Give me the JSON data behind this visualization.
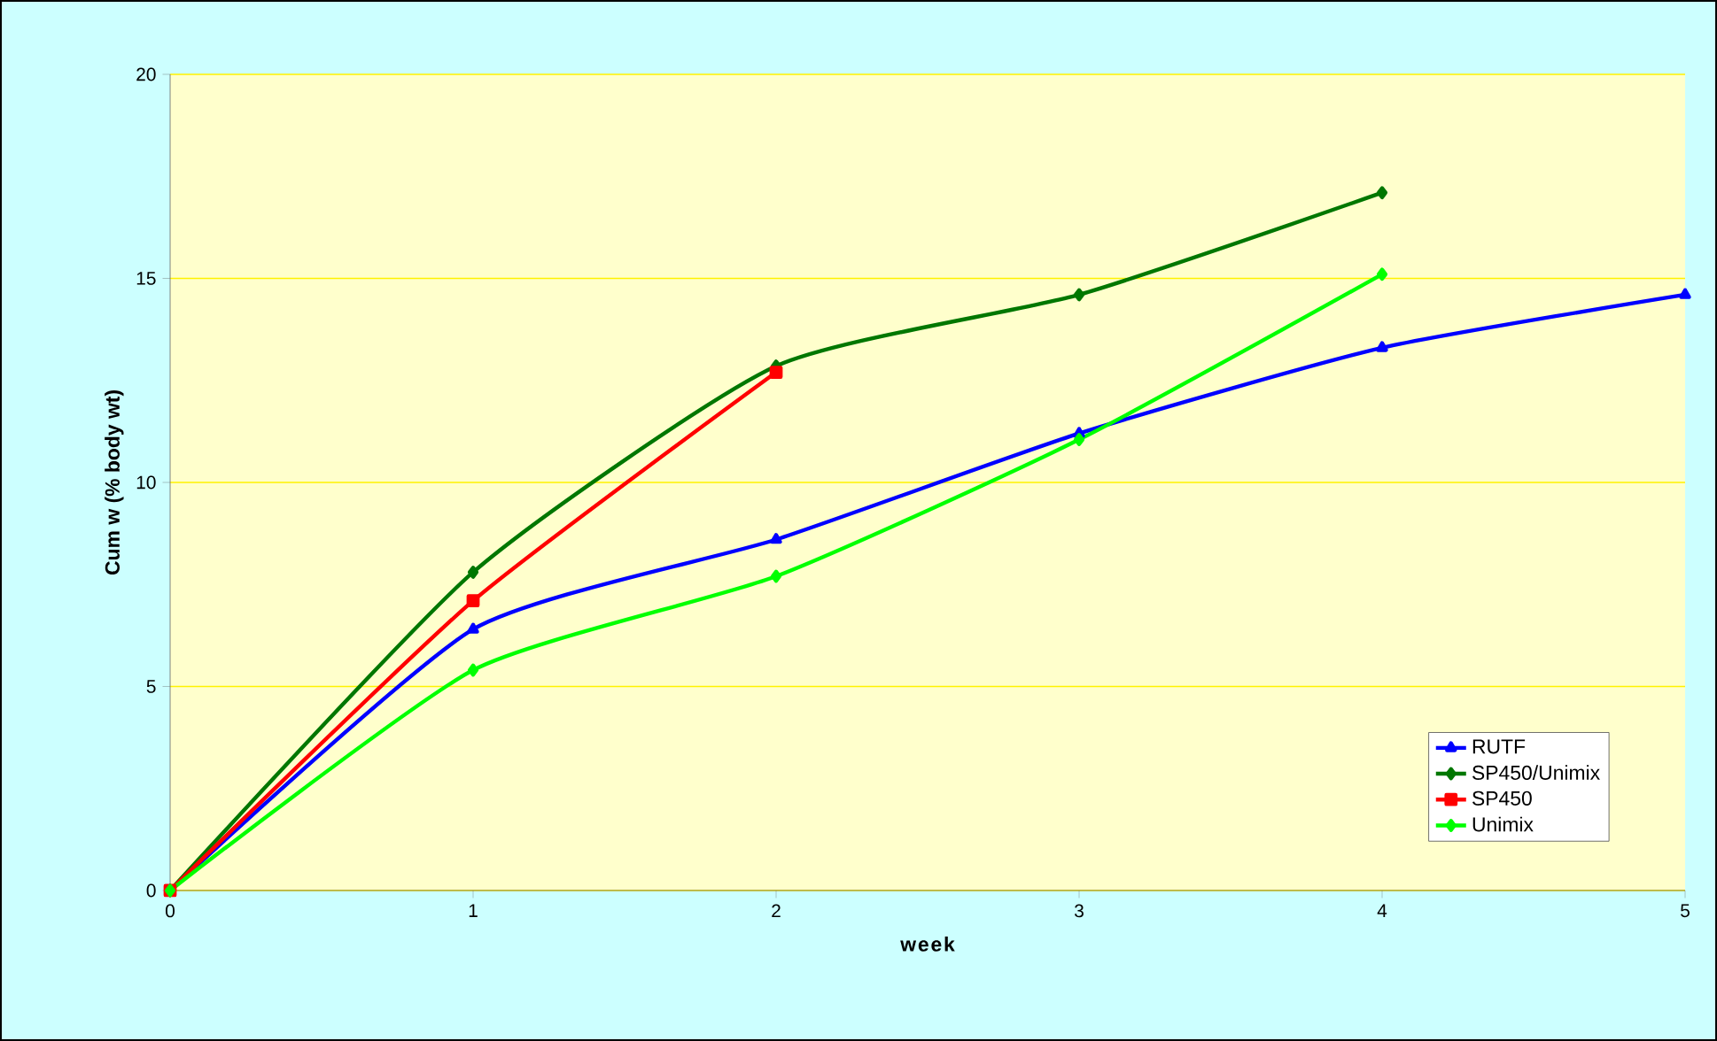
{
  "chart_data": {
    "type": "line",
    "xlabel": "week",
    "ylabel": "Cum w (% body wt)",
    "xlim": [
      0,
      5
    ],
    "ylim": [
      0,
      20
    ],
    "xticks": [
      0,
      1,
      2,
      3,
      4,
      5
    ],
    "yticks": [
      0,
      5,
      10,
      15,
      20
    ],
    "grid": "y",
    "legend": "bottom right",
    "series": [
      {
        "name": "RUTF",
        "color": "#0000ff",
        "marker": "triangle",
        "x": [
          0,
          1,
          2,
          3,
          4,
          5
        ],
        "values": [
          0,
          6.4,
          8.6,
          11.2,
          13.3,
          14.6
        ]
      },
      {
        "name": "SP450/Unimix",
        "color": "#007700",
        "marker": "diamond",
        "x": [
          0,
          1,
          2,
          3,
          4
        ],
        "values": [
          0,
          7.8,
          12.85,
          14.6,
          17.1
        ]
      },
      {
        "name": "SP450",
        "color": "#ff0000",
        "marker": "square",
        "x": [
          0,
          1,
          2
        ],
        "values": [
          0,
          7.1,
          12.7
        ]
      },
      {
        "name": "Unimix",
        "color": "#00ff00",
        "marker": "diamond",
        "x": [
          0,
          1,
          2,
          3,
          4
        ],
        "values": [
          0,
          5.4,
          7.7,
          11.05,
          15.1
        ]
      }
    ]
  }
}
